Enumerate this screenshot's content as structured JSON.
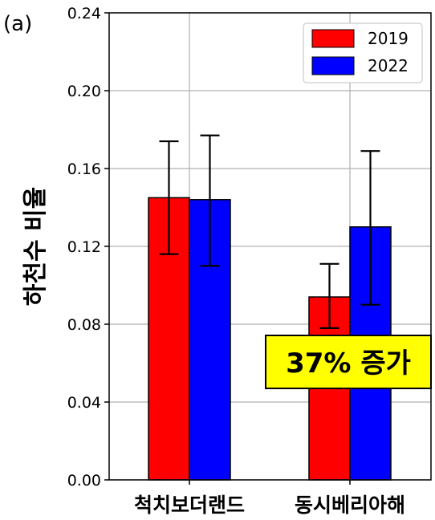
{
  "chart_data": {
    "type": "bar",
    "panel_label": "(a)",
    "title": "",
    "xlabel": "",
    "ylabel": "하천수 비율",
    "categories": [
      "척치보더랜드",
      "동시베리아해"
    ],
    "series": [
      {
        "name": "2019",
        "color": "#ff0000",
        "values": [
          0.145,
          0.094
        ],
        "err_low": [
          0.116,
          0.078
        ],
        "err_high": [
          0.174,
          0.111
        ]
      },
      {
        "name": "2022",
        "color": "#0000ff",
        "values": [
          0.144,
          0.13
        ],
        "err_low": [
          0.11,
          0.09
        ],
        "err_high": [
          0.177,
          0.169
        ]
      }
    ],
    "ylim": [
      0,
      0.24
    ],
    "yticks": [
      "0.00",
      "0.04",
      "0.08",
      "0.12",
      "0.16",
      "0.20",
      "0.24"
    ],
    "grid": true,
    "legend_position": "top-right",
    "annotation": {
      "text": "37% 증가",
      "background": "#ffff00"
    }
  }
}
